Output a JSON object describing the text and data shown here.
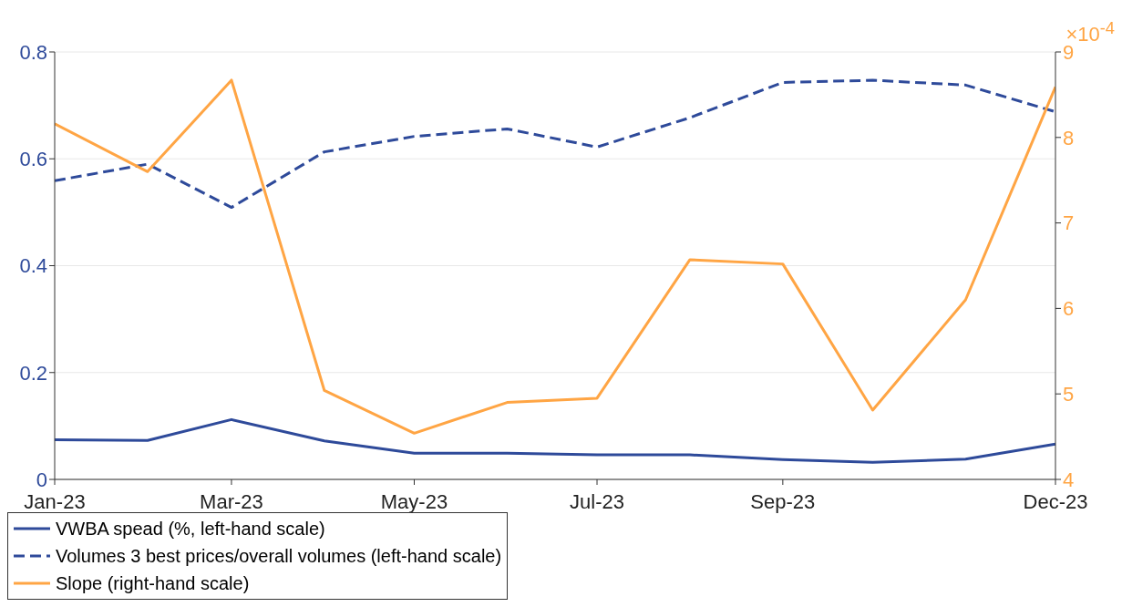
{
  "chart_data": {
    "type": "line",
    "x": [
      "2023-01",
      "2023-02",
      "2023-03",
      "2023-04",
      "2023-05",
      "2023-06",
      "2023-07",
      "2023-08",
      "2023-09",
      "2023-10",
      "2023-11",
      "2023-12"
    ],
    "xlim": [
      "2023-01",
      "2023-12"
    ],
    "xticks": [
      {
        "value": "2023-01",
        "label": "Jan-23"
      },
      {
        "value": "2023-03",
        "label": "Mar-23"
      },
      {
        "value": "2023-05",
        "label": "May-23"
      },
      {
        "value": "2023-07",
        "label": "Jul-23"
      },
      {
        "value": "2023-09",
        "label": "Sep-23"
      },
      {
        "value": "2023-12",
        "label": "Dec-23"
      }
    ],
    "ylim": [
      0,
      0.8
    ],
    "yticks": [
      0,
      0.2,
      0.4,
      0.6,
      0.8
    ],
    "y2lim": [
      4,
      9
    ],
    "y2ticks": [
      4,
      5,
      6,
      7,
      8,
      9
    ],
    "grid": "y",
    "legend": "bottom",
    "marker": "none",
    "annotations": [
      "×10$^{-4}$"
    ],
    "series": [
      {
        "name": "VWBA spead (%, left-hand scale)",
        "color": "#2e4a9a",
        "line_style": "solid",
        "values": [
          0.074,
          0.073,
          0.112,
          0.072,
          0.049,
          0.049,
          0.046,
          0.046,
          0.037,
          0.032,
          0.038,
          0.066
        ]
      },
      {
        "name": "Volumes 3 best prices/overall volumes (left-hand scale)",
        "color": "#2e4a9a",
        "line_style": "dashed",
        "values": [
          0.559,
          0.59,
          0.509,
          0.613,
          0.642,
          0.656,
          0.622,
          0.677,
          0.743,
          0.747,
          0.738,
          0.688
        ]
      },
      {
        "name": "Slope (right-hand scale)",
        "color": "#ffa544",
        "line_style": "solid",
        "axis": "y2",
        "values": [
          8.16,
          7.6,
          8.67,
          5.04,
          4.54,
          4.9,
          4.95,
          6.57,
          6.52,
          4.81,
          6.1,
          8.59
        ]
      }
    ]
  }
}
